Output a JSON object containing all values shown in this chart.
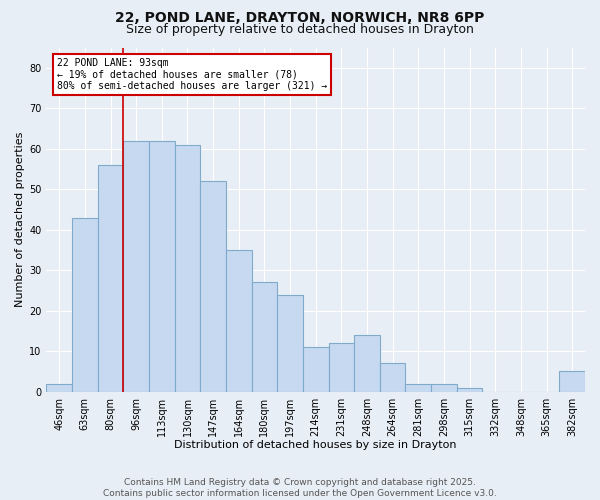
{
  "title1": "22, POND LANE, DRAYTON, NORWICH, NR8 6PP",
  "title2": "Size of property relative to detached houses in Drayton",
  "xlabel": "Distribution of detached houses by size in Drayton",
  "ylabel": "Number of detached properties",
  "categories": [
    "46sqm",
    "63sqm",
    "80sqm",
    "96sqm",
    "113sqm",
    "130sqm",
    "147sqm",
    "164sqm",
    "180sqm",
    "197sqm",
    "214sqm",
    "231sqm",
    "248sqm",
    "264sqm",
    "281sqm",
    "298sqm",
    "315sqm",
    "332sqm",
    "348sqm",
    "365sqm",
    "382sqm"
  ],
  "values": [
    2,
    43,
    56,
    62,
    62,
    61,
    52,
    35,
    27,
    24,
    11,
    12,
    14,
    7,
    2,
    2,
    1,
    0,
    0,
    0,
    5
  ],
  "bar_color": "#c6d9f0",
  "bar_edge_color": "#7faacc",
  "vline_color": "#cc0000",
  "annotation_text": "22 POND LANE: 93sqm\n← 19% of detached houses are smaller (78)\n80% of semi-detached houses are larger (321) →",
  "annotation_box_color": "#ffffff",
  "annotation_box_edge": "#cc0000",
  "ylim": [
    0,
    85
  ],
  "yticks": [
    0,
    10,
    20,
    30,
    40,
    50,
    60,
    70,
    80
  ],
  "background_color": "#e8eef5",
  "grid_color": "#ffffff",
  "footer": "Contains HM Land Registry data © Crown copyright and database right 2025.\nContains public sector information licensed under the Open Government Licence v3.0.",
  "title_fontsize": 10,
  "subtitle_fontsize": 9,
  "axis_label_fontsize": 8,
  "tick_fontsize": 7,
  "footer_fontsize": 6.5,
  "annotation_fontsize": 7
}
